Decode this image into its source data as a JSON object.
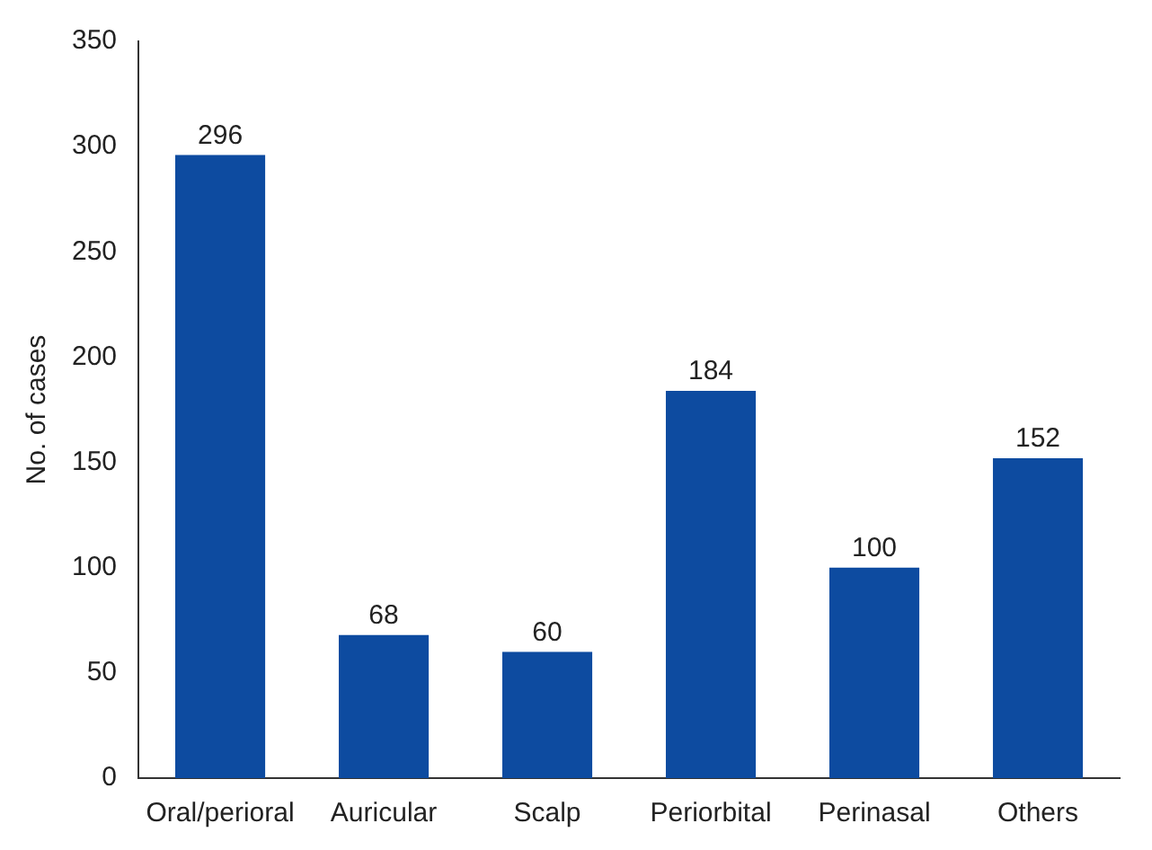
{
  "chart_data": {
    "type": "bar",
    "ylabel": "No. of cases",
    "categories": [
      "Oral/perioral",
      "Auricular",
      "Scalp",
      "Periorbital",
      "Perinasal",
      "Others"
    ],
    "values": [
      296,
      68,
      60,
      184,
      100,
      152
    ],
    "color": "#0d4ba0",
    "ylim": [
      0,
      350
    ],
    "yticks": [
      0,
      50,
      100,
      150,
      200,
      250,
      300,
      350
    ],
    "grid": false,
    "data_labels": true,
    "legend": false
  }
}
